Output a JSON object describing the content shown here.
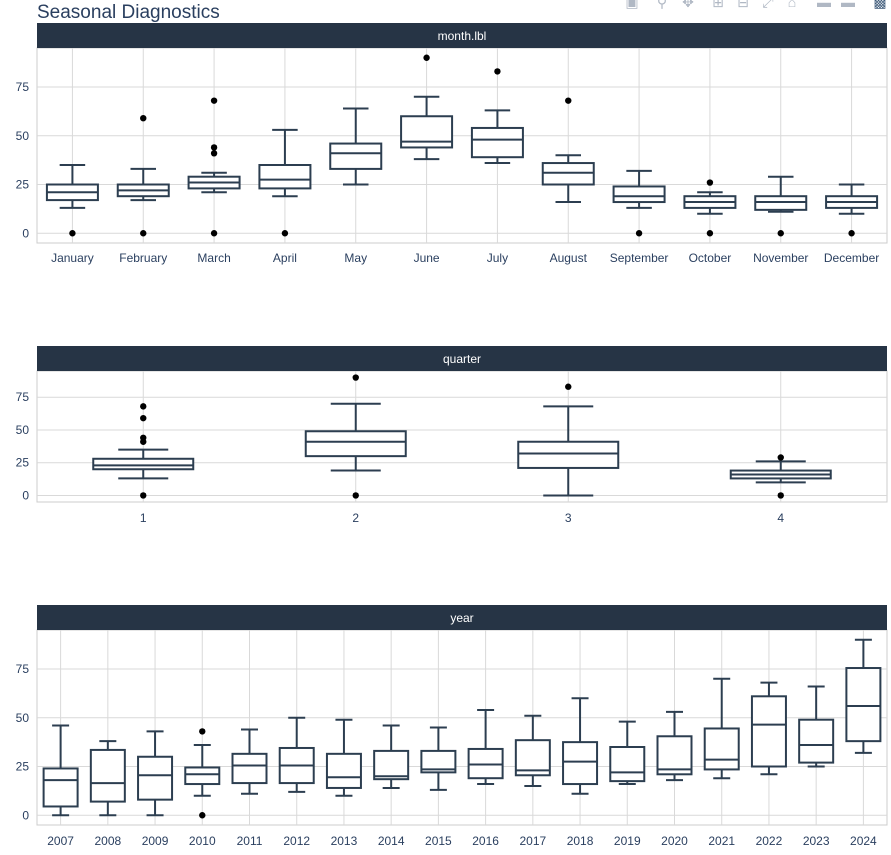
{
  "title": "Seasonal Diagnostics",
  "modebar": {
    "icons": [
      "camera-icon",
      "zoom-icon",
      "pan-icon",
      "zoom-in-icon",
      "zoom-out-icon",
      "autoscale-icon",
      "reset-axes-icon",
      "spike-lines-icon",
      "hover-closest-icon",
      "hover-compare-icon",
      "plotly-logo-icon"
    ]
  },
  "colors": {
    "header_bg": "#263445",
    "header_text": "#ffffff",
    "box_line": "#2c3e50",
    "grid": "#d9d9d9",
    "tick_text": "#2a3f5f",
    "outlier": "#000000"
  },
  "chart_data": [
    {
      "type": "box",
      "facet_label": "month.lbl",
      "ylim": [
        -5,
        95
      ],
      "yticks": [
        0,
        25,
        50,
        75
      ],
      "grid": true,
      "categories": [
        "January",
        "February",
        "March",
        "April",
        "May",
        "June",
        "July",
        "August",
        "September",
        "October",
        "November",
        "December"
      ],
      "boxes": [
        {
          "min": 13,
          "q1": 17,
          "median": 21,
          "q3": 25,
          "max": 35,
          "outliers": [
            0
          ]
        },
        {
          "min": 17,
          "q1": 19,
          "median": 22,
          "q3": 25,
          "max": 33,
          "outliers": [
            0,
            59
          ]
        },
        {
          "min": 21,
          "q1": 23,
          "median": 26,
          "q3": 29,
          "max": 31,
          "outliers": [
            0,
            41,
            44,
            68
          ]
        },
        {
          "min": 19,
          "q1": 23,
          "median": 27.5,
          "q3": 35,
          "max": 53,
          "outliers": [
            0
          ]
        },
        {
          "min": 25,
          "q1": 33,
          "median": 41,
          "q3": 46,
          "max": 64,
          "outliers": []
        },
        {
          "min": 38,
          "q1": 44,
          "median": 47,
          "q3": 60,
          "max": 70,
          "outliers": [
            90
          ]
        },
        {
          "min": 36,
          "q1": 39,
          "median": 48,
          "q3": 54,
          "max": 63,
          "outliers": [
            83
          ]
        },
        {
          "min": 16,
          "q1": 25,
          "median": 31,
          "q3": 36,
          "max": 40,
          "outliers": [
            68
          ]
        },
        {
          "min": 13,
          "q1": 16,
          "median": 19,
          "q3": 24,
          "max": 32,
          "outliers": [
            0
          ]
        },
        {
          "min": 10,
          "q1": 13,
          "median": 16,
          "q3": 19,
          "max": 21,
          "outliers": [
            0,
            26
          ]
        },
        {
          "min": 11,
          "q1": 12,
          "median": 16,
          "q3": 19,
          "max": 29,
          "outliers": [
            0
          ]
        },
        {
          "min": 10,
          "q1": 13,
          "median": 16,
          "q3": 19,
          "max": 25,
          "outliers": [
            0
          ]
        }
      ]
    },
    {
      "type": "box",
      "facet_label": "quarter",
      "ylim": [
        -5,
        95
      ],
      "yticks": [
        0,
        25,
        50,
        75
      ],
      "grid": true,
      "categories": [
        "1",
        "2",
        "3",
        "4"
      ],
      "boxes": [
        {
          "min": 13,
          "q1": 20,
          "median": 23,
          "q3": 28,
          "max": 35,
          "outliers": [
            0,
            41,
            44,
            59,
            68
          ]
        },
        {
          "min": 19,
          "q1": 30,
          "median": 41,
          "q3": 49,
          "max": 70,
          "outliers": [
            0,
            90
          ]
        },
        {
          "min": 0,
          "q1": 21,
          "median": 32,
          "q3": 41,
          "max": 68,
          "outliers": [
            83
          ]
        },
        {
          "min": 10,
          "q1": 13,
          "median": 16,
          "q3": 19,
          "max": 26,
          "outliers": [
            0,
            29
          ]
        }
      ]
    },
    {
      "type": "box",
      "facet_label": "year",
      "ylim": [
        -5,
        95
      ],
      "yticks": [
        0,
        25,
        50,
        75
      ],
      "grid": true,
      "categories": [
        "2007",
        "2008",
        "2009",
        "2010",
        "2011",
        "2012",
        "2013",
        "2014",
        "2015",
        "2016",
        "2017",
        "2018",
        "2019",
        "2020",
        "2021",
        "2022",
        "2023",
        "2024"
      ],
      "boxes": [
        {
          "min": 0,
          "q1": 4.5,
          "median": 18,
          "q3": 24,
          "max": 46,
          "outliers": []
        },
        {
          "min": 0,
          "q1": 7,
          "median": 16.5,
          "q3": 33.5,
          "max": 38,
          "outliers": []
        },
        {
          "min": 0,
          "q1": 8,
          "median": 20.5,
          "q3": 30,
          "max": 43,
          "outliers": []
        },
        {
          "min": 10,
          "q1": 16,
          "median": 21,
          "q3": 24.5,
          "max": 36,
          "outliers": [
            0,
            43
          ]
        },
        {
          "min": 11,
          "q1": 16.5,
          "median": 25.5,
          "q3": 31.5,
          "max": 44,
          "outliers": []
        },
        {
          "min": 12,
          "q1": 16.5,
          "median": 25.5,
          "q3": 34.5,
          "max": 50,
          "outliers": []
        },
        {
          "min": 10,
          "q1": 14,
          "median": 19.5,
          "q3": 31.5,
          "max": 49,
          "outliers": []
        },
        {
          "min": 14,
          "q1": 18.5,
          "median": 20,
          "q3": 33,
          "max": 46,
          "outliers": []
        },
        {
          "min": 13,
          "q1": 22,
          "median": 23.5,
          "q3": 33,
          "max": 45,
          "outliers": []
        },
        {
          "min": 16,
          "q1": 19,
          "median": 26,
          "q3": 34,
          "max": 54,
          "outliers": []
        },
        {
          "min": 15,
          "q1": 20.5,
          "median": 23,
          "q3": 38.5,
          "max": 51,
          "outliers": []
        },
        {
          "min": 11,
          "q1": 16,
          "median": 27.5,
          "q3": 37.5,
          "max": 60,
          "outliers": []
        },
        {
          "min": 16,
          "q1": 17.5,
          "median": 22,
          "q3": 35,
          "max": 48,
          "outliers": []
        },
        {
          "min": 18,
          "q1": 21,
          "median": 23.5,
          "q3": 40.5,
          "max": 53,
          "outliers": []
        },
        {
          "min": 19,
          "q1": 23.5,
          "median": 28.5,
          "q3": 44.5,
          "max": 70,
          "outliers": []
        },
        {
          "min": 21,
          "q1": 25,
          "median": 46.5,
          "q3": 61,
          "max": 68,
          "outliers": []
        },
        {
          "min": 25,
          "q1": 27,
          "median": 36,
          "q3": 49,
          "max": 66,
          "outliers": []
        },
        {
          "min": 32,
          "q1": 38,
          "median": 56,
          "q3": 75.5,
          "max": 90,
          "outliers": []
        }
      ]
    }
  ]
}
